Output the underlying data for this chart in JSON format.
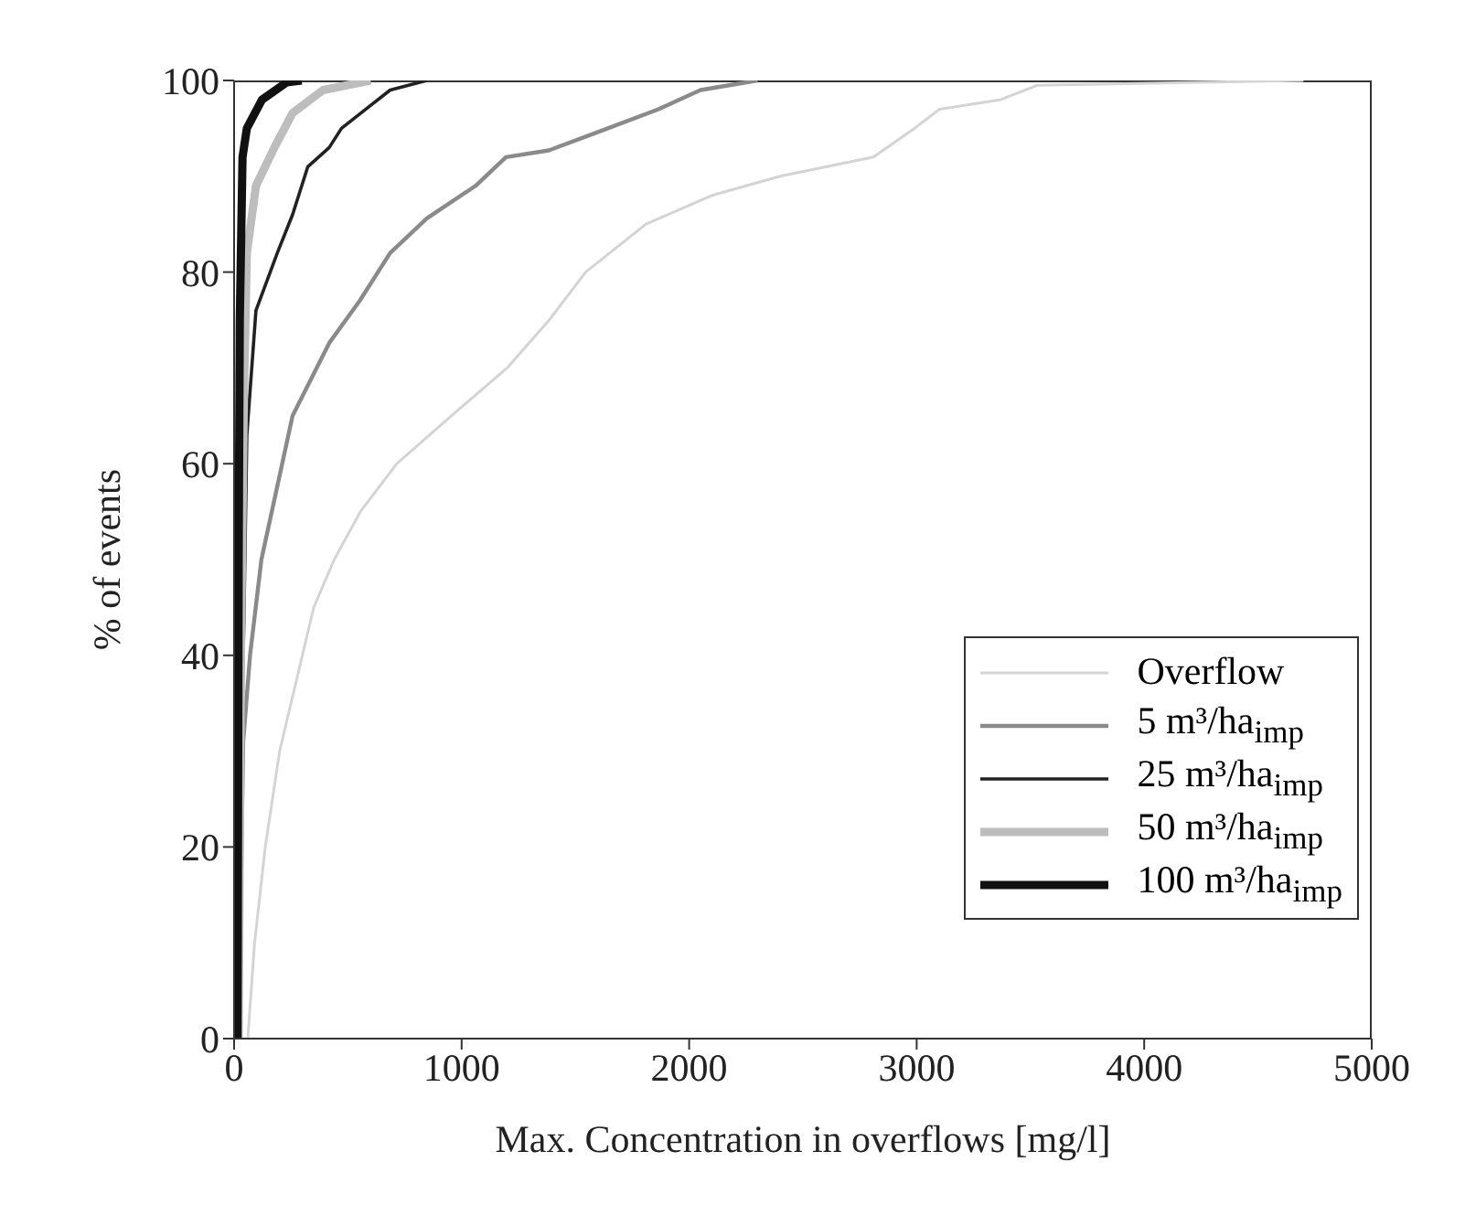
{
  "chart_data": {
    "type": "line",
    "xlabel": "Max. Concentration in overflows [mg/l]",
    "ylabel": "% of events",
    "xlim": [
      0,
      5000
    ],
    "xticks": [
      0,
      1000,
      2000,
      3000,
      4000,
      5000
    ],
    "ylim": [
      0,
      100
    ],
    "yticks": [
      0,
      20,
      40,
      60,
      80,
      100
    ],
    "grid": false,
    "legend": "bottom right",
    "marker": "none",
    "line_style": "solid",
    "series": [
      {
        "name": "Overflow",
        "color": "#d4d4d4",
        "x": [
          60,
          90,
          137,
          200,
          300,
          350,
          440,
          555,
          715,
          955,
          1200,
          1385,
          1545,
          1810,
          2100,
          2400,
          2810,
          2990,
          3100,
          3370,
          3530,
          4700
        ],
        "values": [
          0,
          10,
          20,
          30,
          40,
          45,
          50,
          55,
          60,
          65,
          70,
          75,
          80,
          85,
          88,
          90,
          92,
          95,
          97,
          98,
          99.5,
          100
        ]
      },
      {
        "name": "5 m³/ha$_{imp}$",
        "color": "#8a8a8a",
        "x": [
          20,
          40,
          70,
          120,
          257,
          418,
          552,
          686,
          847,
          1061,
          1195,
          1383,
          1597,
          1865,
          2050,
          2300
        ],
        "values": [
          0,
          31,
          40,
          50,
          65,
          72.6,
          77,
          82,
          85.6,
          89,
          92,
          92.7,
          94.6,
          97,
          99,
          100
        ]
      },
      {
        "name": "25 m³/ha$_{imp}$",
        "color": "#222222",
        "x": [
          10,
          30,
          43,
          56,
          96,
          190,
          257,
          324,
          418,
          472,
          579,
          686,
          847
        ],
        "values": [
          0,
          30,
          43.5,
          63,
          76,
          82,
          86,
          91,
          93,
          95,
          97,
          99,
          100
        ]
      },
      {
        "name": "50 m³/ha$_{imp}$",
        "color": "#bdbdbd",
        "x": [
          20,
          30,
          43,
          56,
          96,
          177,
          257,
          391,
          600
        ],
        "values": [
          0,
          40,
          67,
          82,
          89,
          93,
          96.6,
          99,
          100
        ]
      },
      {
        "name": "100 m³/ha$_{imp}$",
        "color": "#111111",
        "x": [
          15,
          20,
          25,
          37,
          56,
          123,
          231,
          297
        ],
        "values": [
          0,
          50,
          75,
          92,
          95,
          98,
          99.8,
          100
        ]
      }
    ]
  }
}
